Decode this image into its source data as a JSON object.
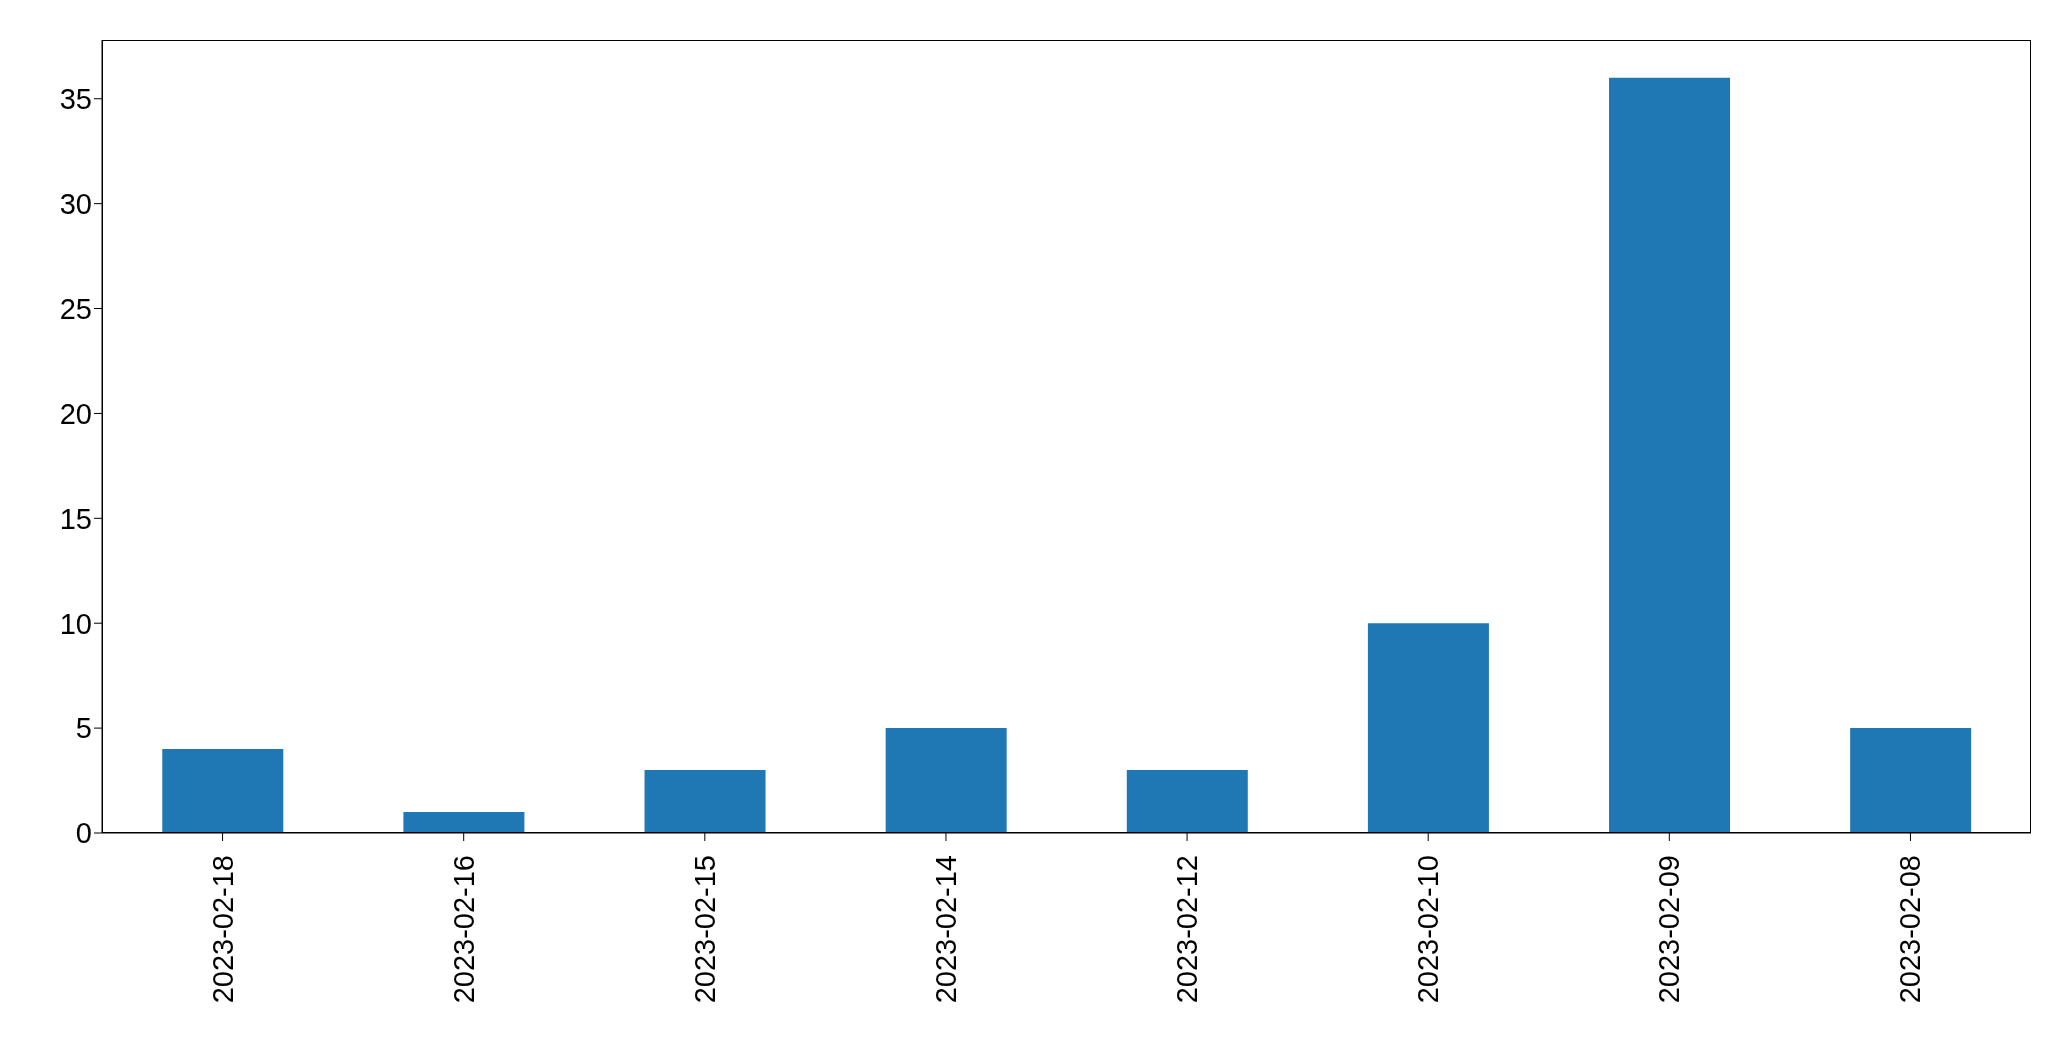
{
  "chart_data": {
    "type": "bar",
    "categories": [
      "2023-02-18",
      "2023-02-16",
      "2023-02-15",
      "2023-02-14",
      "2023-02-12",
      "2023-02-10",
      "2023-02-09",
      "2023-02-08"
    ],
    "values": [
      4,
      1,
      3,
      5,
      3,
      10,
      36,
      5
    ],
    "color": "#1f77b4",
    "ylim": [
      0,
      37.8
    ],
    "yticks": [
      0,
      5,
      10,
      15,
      20,
      25,
      30,
      35
    ],
    "grid": false,
    "legend": false
  }
}
